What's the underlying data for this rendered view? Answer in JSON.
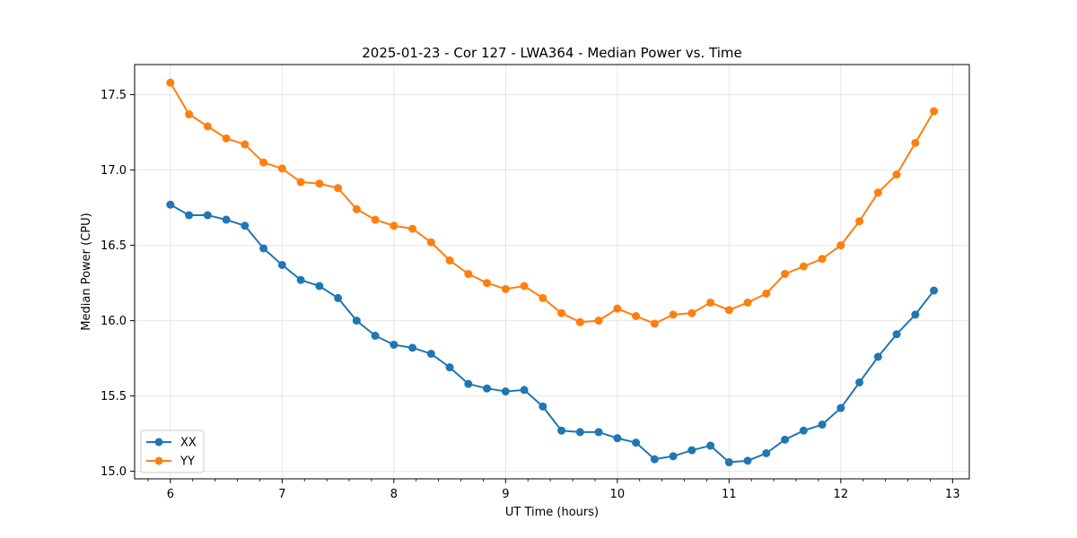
{
  "chart_data": {
    "type": "line",
    "title": "2025-01-23 - Cor 127 - LWA364 - Median Power vs. Time",
    "xlabel": "UT Time (hours)",
    "ylabel": "Median Power (CPU)",
    "xlim": [
      5.68,
      13.15
    ],
    "ylim": [
      14.95,
      17.7
    ],
    "xticks": [
      6,
      7,
      8,
      9,
      10,
      11,
      12,
      13
    ],
    "yticks": [
      15.0,
      15.5,
      16.0,
      16.5,
      17.0,
      17.5
    ],
    "xtick_labels": [
      "6",
      "7",
      "8",
      "9",
      "10",
      "11",
      "12",
      "13"
    ],
    "ytick_labels": [
      "15.0",
      "15.5",
      "16.0",
      "16.5",
      "17.0",
      "17.5"
    ],
    "grid": true,
    "legend_position": "lower-left",
    "x": [
      6.0,
      6.1667,
      6.3333,
      6.5,
      6.6667,
      6.8333,
      7.0,
      7.1667,
      7.3333,
      7.5,
      7.6667,
      7.8333,
      8.0,
      8.1667,
      8.3333,
      8.5,
      8.6667,
      8.8333,
      9.0,
      9.1667,
      9.3333,
      9.5,
      9.6667,
      9.8333,
      10.0,
      10.1667,
      10.3333,
      10.5,
      10.6667,
      10.8333,
      11.0,
      11.1667,
      11.3333,
      11.5,
      11.6667,
      11.8333,
      12.0,
      12.1667,
      12.3333,
      12.5,
      12.6667,
      12.8333
    ],
    "series": [
      {
        "name": "XX",
        "color": "#1f77b4",
        "values": [
          16.77,
          16.7,
          16.7,
          16.67,
          16.63,
          16.48,
          16.37,
          16.27,
          16.23,
          16.15,
          16.0,
          15.9,
          15.84,
          15.82,
          15.78,
          15.69,
          15.58,
          15.55,
          15.53,
          15.54,
          15.43,
          15.27,
          15.26,
          15.26,
          15.22,
          15.19,
          15.08,
          15.1,
          15.14,
          15.17,
          15.06,
          15.07,
          15.12,
          15.21,
          15.27,
          15.31,
          15.42,
          15.59,
          15.76,
          15.91,
          16.04,
          16.2
        ]
      },
      {
        "name": "YY",
        "color": "#ff7f0e",
        "values": [
          17.58,
          17.37,
          17.29,
          17.21,
          17.17,
          17.05,
          17.01,
          16.92,
          16.91,
          16.88,
          16.74,
          16.67,
          16.63,
          16.61,
          16.52,
          16.4,
          16.31,
          16.25,
          16.21,
          16.23,
          16.15,
          16.05,
          15.99,
          16.0,
          16.08,
          16.03,
          15.98,
          16.04,
          16.05,
          16.12,
          16.07,
          16.12,
          16.18,
          16.31,
          16.36,
          16.41,
          16.5,
          16.66,
          16.85,
          16.97,
          17.18,
          17.39
        ]
      }
    ]
  }
}
